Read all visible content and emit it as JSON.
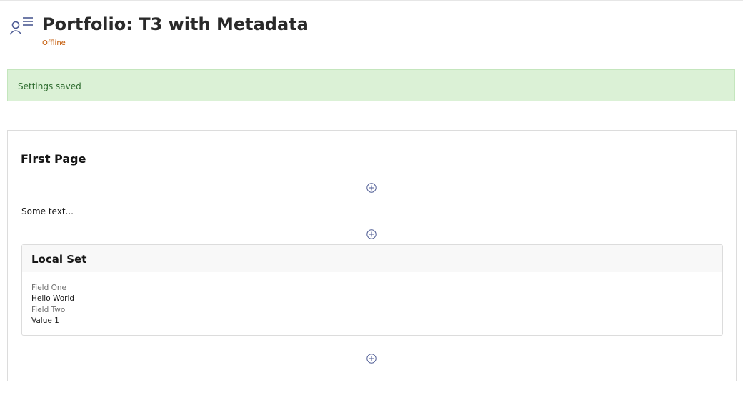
{
  "header": {
    "title": "Portfolio: T3 with Metadata",
    "status": "Offline",
    "icon": "portfolio-user-list-icon"
  },
  "alert": {
    "message": "Settings saved"
  },
  "page": {
    "title": "First Page",
    "text_block": "Some text...",
    "add_icon": "plus-circle-icon",
    "set": {
      "title": "Local Set",
      "fields": [
        {
          "label": "Field One",
          "value": "Hello World"
        },
        {
          "label": "Field Two",
          "value": "Value 1"
        }
      ]
    }
  }
}
